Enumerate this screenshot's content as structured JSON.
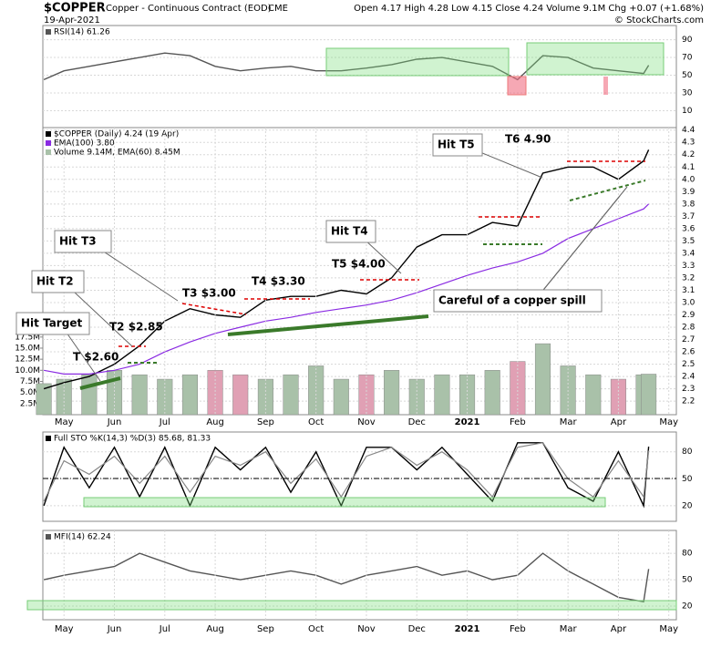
{
  "header": {
    "symbol": "$COPPER",
    "description": "Copper - Continuous Contract (EOD)",
    "exchange": "CME",
    "date": "19-Apr-2021",
    "quote": "Open 4.17   High 4.28   Low 4.15   Close 4.24   Volume 9.1M   Chg +0.07 (+1.68%)",
    "brand": "© StockCharts.com"
  },
  "x_axis": {
    "xlim": [
      -0.42,
      12.15
    ],
    "xticks": [
      {
        "value": 0,
        "label": "May"
      },
      {
        "value": 1,
        "label": "Jun"
      },
      {
        "value": 2,
        "label": "Jul"
      },
      {
        "value": 3,
        "label": "Aug"
      },
      {
        "value": 4,
        "label": "Sep"
      },
      {
        "value": 5,
        "label": "Oct"
      },
      {
        "value": 6,
        "label": "Nov"
      },
      {
        "value": 7,
        "label": "Dec"
      },
      {
        "value": 8,
        "label": "2021"
      },
      {
        "value": 9,
        "label": "Feb"
      },
      {
        "value": 10,
        "label": "Mar"
      },
      {
        "value": 11,
        "label": "Apr"
      },
      {
        "value": 12,
        "label": "May"
      }
    ]
  },
  "annotations": [
    "Hit Target",
    "Hit T2",
    "Hit T3",
    "Hit T4",
    "Hit T5",
    "T $2.60",
    "T2 $2.85",
    "T3 $3.00",
    "T4 $3.30",
    "T5 $4.00",
    "T6 4.90",
    "Careful of a copper spill"
  ],
  "chart_data": [
    {
      "type": "line",
      "x": [
        -0.4,
        0,
        0.5,
        1,
        1.5,
        2,
        2.5,
        3,
        3.5,
        4,
        4.5,
        5,
        5.5,
        6,
        6.5,
        7,
        7.5,
        8,
        8.5,
        9,
        9.5,
        10,
        10.5,
        11,
        11.5,
        11.6
      ],
      "ylim": [
        -9,
        106
      ],
      "yticks": [
        10,
        30,
        50,
        70,
        90
      ],
      "grid": true,
      "series": [
        {
          "name": "RSI(14) 61.26",
          "color": "#555555",
          "values": [
            45,
            55,
            60,
            65,
            70,
            75,
            72,
            60,
            55,
            58,
            60,
            55,
            55,
            58,
            62,
            68,
            70,
            65,
            60,
            45,
            72,
            70,
            58,
            55,
            52,
            61.26
          ]
        }
      ]
    },
    {
      "type": "line",
      "x": [
        -0.4,
        0,
        0.5,
        1,
        1.5,
        2,
        2.5,
        3,
        3.5,
        4,
        4.5,
        5,
        5.5,
        6,
        6.5,
        7,
        7.5,
        8,
        8.5,
        9,
        9.5,
        10,
        10.5,
        11,
        11.5,
        11.6
      ],
      "ylim": [
        2.09,
        4.42
      ],
      "yticks": [
        2.2,
        2.3,
        2.4,
        2.5,
        2.6,
        2.7,
        2.8,
        2.9,
        {
          "value": 3.0,
          "label": "3.0"
        },
        3.1,
        3.2,
        3.3,
        3.4,
        3.5,
        3.6,
        3.7,
        3.8,
        3.9,
        {
          "value": 4.0,
          "label": "4.0"
        },
        4.1,
        4.2,
        4.3,
        4.4
      ],
      "y2lim": [
        0,
        64.7
      ],
      "y2ticks": [
        {
          "value": 2.5,
          "label": "2.5M"
        },
        {
          "value": 5,
          "label": "5.0M"
        },
        {
          "value": 7.5,
          "label": "7.5M"
        },
        {
          "value": 10,
          "label": "10.0M"
        },
        {
          "value": 12.5,
          "label": "12.5M"
        },
        {
          "value": 15,
          "label": "15.0M"
        },
        {
          "value": 17.5,
          "label": "17.5M"
        }
      ],
      "grid": true,
      "series": [
        {
          "name": "$COPPER (Daily) 4.24 (19 Apr)",
          "color": "#000000",
          "values": [
            2.3,
            2.35,
            2.4,
            2.5,
            2.65,
            2.85,
            2.95,
            2.9,
            2.88,
            3.02,
            3.05,
            3.05,
            3.1,
            3.07,
            3.2,
            3.45,
            3.55,
            3.55,
            3.65,
            3.62,
            4.05,
            4.1,
            4.1,
            4.0,
            4.15,
            4.24
          ]
        },
        {
          "name": "EMA(100) 3.80",
          "color": "#8a2be2",
          "values": [
            2.45,
            2.42,
            2.42,
            2.45,
            2.5,
            2.6,
            2.68,
            2.75,
            2.8,
            2.85,
            2.88,
            2.92,
            2.95,
            2.98,
            3.02,
            3.08,
            3.15,
            3.22,
            3.28,
            3.33,
            3.4,
            3.52,
            3.6,
            3.68,
            3.76,
            3.8
          ]
        },
        {
          "name": "Volume 9.14M, EMA(60) 8.45M",
          "color": "#a9c1a9",
          "type": "bar",
          "axis": "y2",
          "values": [
            7,
            8,
            9,
            10,
            9,
            8,
            9,
            10,
            9,
            8,
            9,
            11,
            8,
            9,
            10,
            8,
            9,
            9,
            10,
            12,
            16,
            11,
            9,
            8,
            9,
            9.14
          ]
        }
      ]
    },
    {
      "type": "line",
      "x": [
        -0.4,
        0,
        0.5,
        1,
        1.5,
        2,
        2.5,
        3,
        3.5,
        4,
        4.5,
        5,
        5.5,
        6,
        6.5,
        7,
        7.5,
        8,
        8.5,
        9,
        9.5,
        10,
        10.5,
        11,
        11.5,
        11.6
      ],
      "ylim": [
        2.7,
        102
      ],
      "yticks": [
        20,
        50,
        80
      ],
      "grid": true,
      "series": [
        {
          "name": "Full STO %K(14,3) %D(3) 85.68, 81.33",
          "color": "#000000",
          "values": [
            20,
            85,
            40,
            85,
            30,
            85,
            20,
            85,
            60,
            85,
            35,
            80,
            20,
            85,
            85,
            60,
            85,
            55,
            25,
            90,
            90,
            40,
            25,
            80,
            20,
            85.68
          ]
        },
        {
          "name": "%D(3)",
          "color": "#888888",
          "values": [
            25,
            70,
            55,
            75,
            45,
            75,
            35,
            75,
            65,
            80,
            45,
            72,
            30,
            75,
            85,
            65,
            80,
            60,
            30,
            85,
            90,
            50,
            30,
            70,
            30,
            81.33
          ]
        }
      ]
    },
    {
      "type": "line",
      "x": [
        -0.4,
        0,
        0.5,
        1,
        1.5,
        2,
        2.5,
        3,
        3.5,
        4,
        4.5,
        5,
        5.5,
        6,
        6.5,
        7,
        7.5,
        8,
        8.5,
        9,
        9.5,
        10,
        10.5,
        11,
        11.5,
        11.6
      ],
      "ylim": [
        4.5,
        106
      ],
      "yticks": [
        20,
        50,
        80
      ],
      "grid": true,
      "series": [
        {
          "name": "MFI(14) 62.24",
          "color": "#555555",
          "values": [
            50,
            55,
            60,
            65,
            80,
            70,
            60,
            55,
            50,
            55,
            60,
            55,
            45,
            55,
            60,
            65,
            55,
            60,
            50,
            55,
            80,
            60,
            45,
            30,
            25,
            62.24
          ]
        }
      ]
    }
  ]
}
